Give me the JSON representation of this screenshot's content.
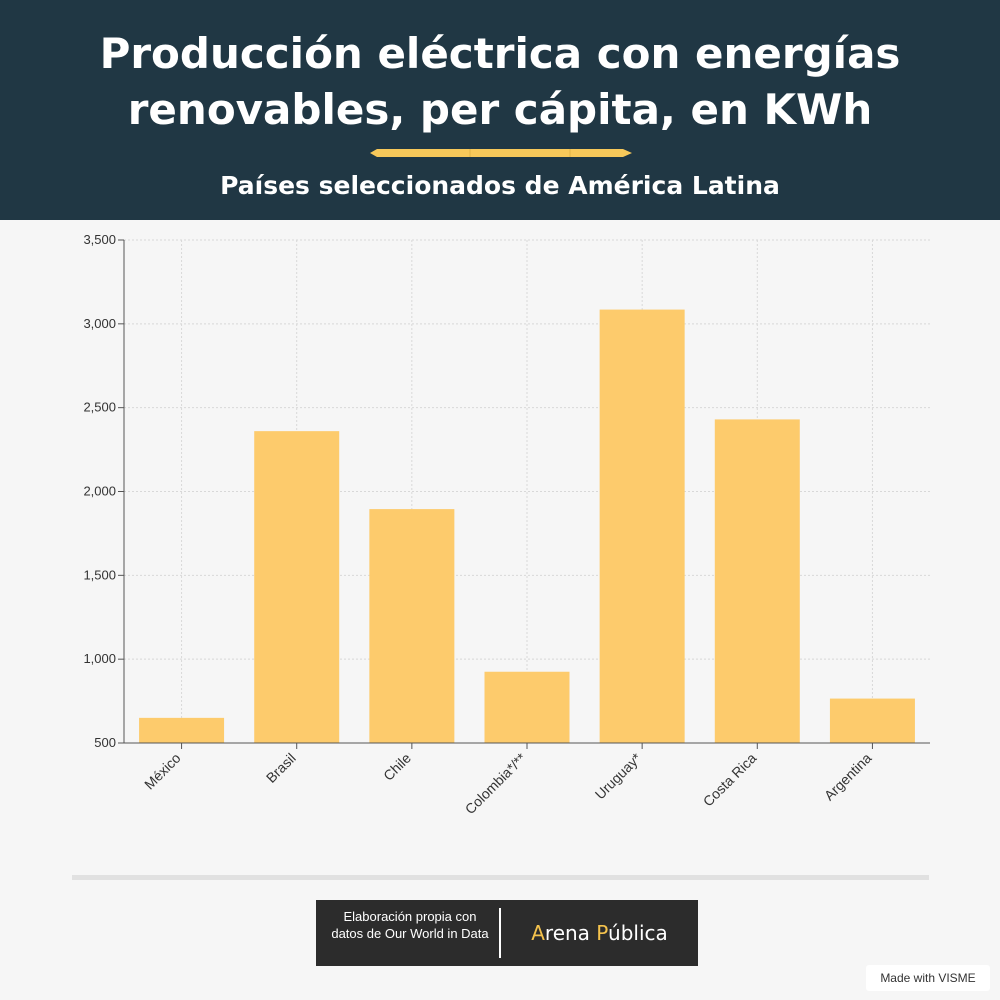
{
  "header": {
    "title": "Producción eléctrica con energías renovables, per cápita, en KWh",
    "subtitle": "Países seleccionados de América Latina",
    "accent_color": "#f7c85a",
    "background_color": "#203744",
    "divider_icon": "pencil-divider-icon"
  },
  "chart_data": {
    "type": "bar",
    "categories": [
      "México",
      "Brasil",
      "Chile",
      "Colombia*/**",
      "Uruguay*",
      "Costa Rica",
      "Argentina"
    ],
    "values": [
      650,
      2360,
      1895,
      925,
      3085,
      2430,
      765
    ],
    "ylim": [
      500,
      3500
    ],
    "yticks": [
      500,
      1000,
      1500,
      2000,
      2500,
      3000,
      3500
    ],
    "ytick_labels": [
      "500",
      "1,000",
      "1,500",
      "2,000",
      "2,500",
      "3,000",
      "3,500"
    ],
    "bar_color": "#fdcb6c",
    "grid": true,
    "legend": "none"
  },
  "footer": {
    "credit_text": "Elaboración propia con datos de Our World in Data",
    "brand_part1": "A",
    "brand_part2": "rena ",
    "brand_part3": "P",
    "brand_part4": "ública",
    "brand_accent_color": "#f5c34d",
    "made_with": "Made with VISME"
  }
}
